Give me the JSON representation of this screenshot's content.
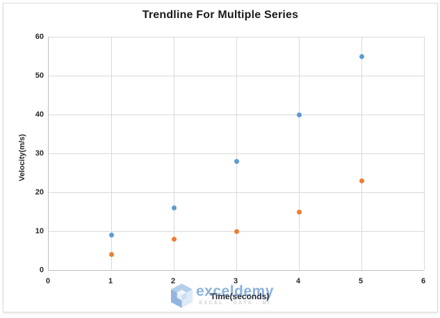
{
  "title": "Trendline For Multiple Series",
  "watermark": {
    "brand": "exceldemy",
    "tagline": "EXCEL - DATA - BI",
    "logo_icon": "exceldemy-cube-logo-icon"
  },
  "colors": {
    "series_blue": "#5B9BD5",
    "series_orange": "#ED7D31",
    "gridline": "#D9D9D9",
    "axis_line": "#BFBFBF",
    "text": "#262626",
    "watermark_blue": "#4A86C8",
    "watermark_gray": "#C9C9C9"
  },
  "chart_data": {
    "type": "scatter",
    "title": "Trendline For Multiple Series",
    "xlabel": "Time(seconds)",
    "ylabel": "Velocity(m/s)",
    "xlim": [
      0,
      6
    ],
    "ylim": [
      0,
      60
    ],
    "xticks": [
      0,
      1,
      2,
      3,
      4,
      5,
      6
    ],
    "yticks": [
      0,
      10,
      20,
      30,
      40,
      50,
      60
    ],
    "grid": true,
    "legend": "none",
    "x": [
      1,
      2,
      3,
      4,
      5
    ],
    "series": [
      {
        "color": "#5B9BD5",
        "values": [
          9,
          16,
          28,
          40,
          55
        ]
      },
      {
        "color": "#ED7D31",
        "values": [
          4,
          8,
          10,
          15,
          23
        ]
      }
    ]
  }
}
